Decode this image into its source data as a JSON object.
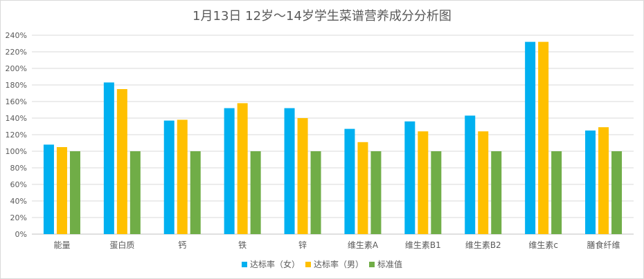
{
  "title": "1月13日 12岁～14岁学生菜谱营养成分分析图",
  "chart_data": {
    "type": "bar",
    "title": "1月13日 12岁～14岁学生菜谱营养成分分析图",
    "categories": [
      "能量",
      "蛋白质",
      "钙",
      "铁",
      "锌",
      "维生素A",
      "维生素B1",
      "维生素B2",
      "维生素c",
      "膳食纤维"
    ],
    "series": [
      {
        "name": "达标率（女）",
        "color": "#00b0f0",
        "values": [
          108,
          183,
          137,
          152,
          152,
          127,
          136,
          143,
          232,
          125
        ]
      },
      {
        "name": "达标率（男）",
        "color": "#ffc000",
        "values": [
          105,
          175,
          138,
          158,
          140,
          111,
          124,
          124,
          232,
          129
        ]
      },
      {
        "name": "标准值",
        "color": "#70ad47",
        "values": [
          100,
          100,
          100,
          100,
          100,
          100,
          100,
          100,
          100,
          100
        ]
      }
    ],
    "ylim": [
      0,
      240
    ],
    "yticks": [
      "0%",
      "20%",
      "40%",
      "60%",
      "80%",
      "100%",
      "120%",
      "140%",
      "160%",
      "180%",
      "200%",
      "220%",
      "240%"
    ],
    "xlabel": "",
    "ylabel": "",
    "grid": true,
    "legend": "bottom"
  }
}
